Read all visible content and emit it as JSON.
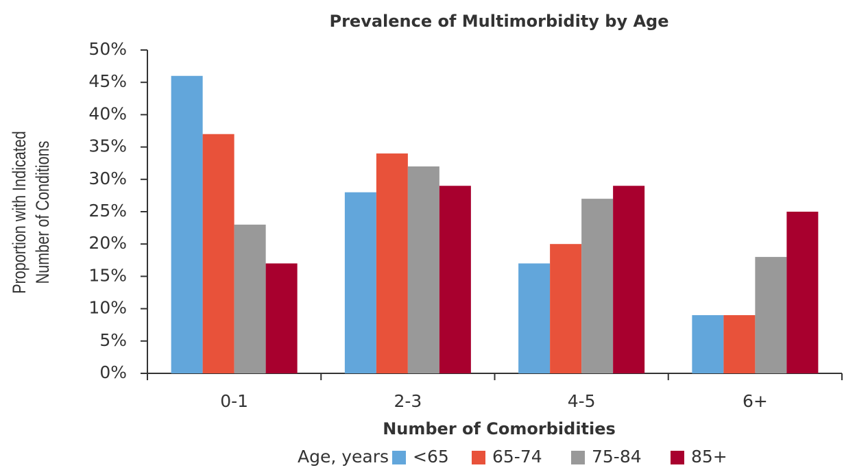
{
  "chart_data": {
    "type": "bar",
    "title": "Prevalence of Multimorbidity by Age",
    "x_label": "Number of Comorbidities",
    "y_label": [
      "Proportion with Indicated",
      "Number of Conditions"
    ],
    "legend_title": "Age, years",
    "categories": [
      "0-1",
      "2-3",
      "4-5",
      "6+"
    ],
    "series": [
      {
        "name": "<65",
        "color": "#62a6db",
        "values": [
          46,
          28,
          17,
          9
        ]
      },
      {
        "name": "65-74",
        "color": "#e8523a",
        "values": [
          37,
          34,
          20,
          9
        ]
      },
      {
        "name": "75-84",
        "color": "#999999",
        "values": [
          23,
          32,
          27,
          18
        ]
      },
      {
        "name": "85+",
        "color": "#a8002e",
        "values": [
          17,
          29,
          29,
          25
        ]
      }
    ],
    "ylim": [
      0,
      50
    ],
    "yticks": [
      {
        "value": 0,
        "label": "0%"
      },
      {
        "value": 5,
        "label": "5%"
      },
      {
        "value": 10,
        "label": "10%"
      },
      {
        "value": 15,
        "label": "15%"
      },
      {
        "value": 20,
        "label": "20%"
      },
      {
        "value": 25,
        "label": "25%"
      },
      {
        "value": 30,
        "label": "30%"
      },
      {
        "value": 35,
        "label": "35%"
      },
      {
        "value": 40,
        "label": "40%"
      },
      {
        "value": 45,
        "label": "45%"
      },
      {
        "value": 50,
        "label": "50%"
      }
    ],
    "grid": false,
    "legend": "bottom"
  }
}
